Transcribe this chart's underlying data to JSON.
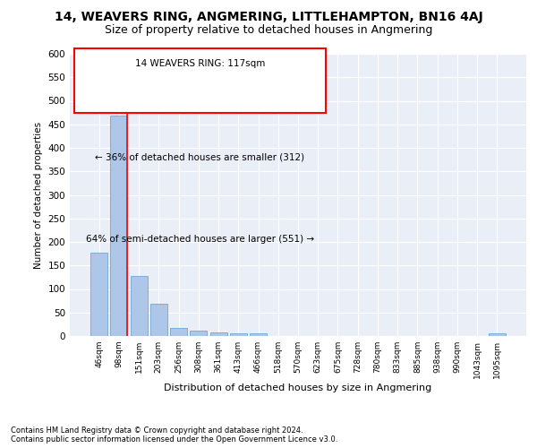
{
  "title": "14, WEAVERS RING, ANGMERING, LITTLEHAMPTON, BN16 4AJ",
  "subtitle": "Size of property relative to detached houses in Angmering",
  "xlabel": "Distribution of detached houses by size in Angmering",
  "ylabel": "Number of detached properties",
  "footer_line1": "Contains HM Land Registry data © Crown copyright and database right 2024.",
  "footer_line2": "Contains public sector information licensed under the Open Government Licence v3.0.",
  "annotation_line1": "14 WEAVERS RING: 117sqm",
  "annotation_line2": "← 36% of detached houses are smaller (312)",
  "annotation_line3": "64% of semi-detached houses are larger (551) →",
  "bar_color": "#aec6e8",
  "bar_edge_color": "#5a9fd4",
  "categories": [
    "46sqm",
    "98sqm",
    "151sqm",
    "203sqm",
    "256sqm",
    "308sqm",
    "361sqm",
    "413sqm",
    "466sqm",
    "518sqm",
    "570sqm",
    "623sqm",
    "675sqm",
    "728sqm",
    "780sqm",
    "833sqm",
    "885sqm",
    "938sqm",
    "990sqm",
    "1043sqm",
    "1095sqm"
  ],
  "values": [
    178,
    468,
    127,
    69,
    18,
    11,
    7,
    5,
    6,
    0,
    0,
    0,
    0,
    0,
    0,
    0,
    0,
    0,
    0,
    0,
    6
  ],
  "ylim": [
    0,
    600
  ],
  "yticks": [
    0,
    50,
    100,
    150,
    200,
    250,
    300,
    350,
    400,
    450,
    500,
    550,
    600
  ],
  "background_color": "#eaeff7",
  "grid_color": "#ffffff",
  "title_fontsize": 10,
  "subtitle_fontsize": 9,
  "red_line_x": 1.43
}
